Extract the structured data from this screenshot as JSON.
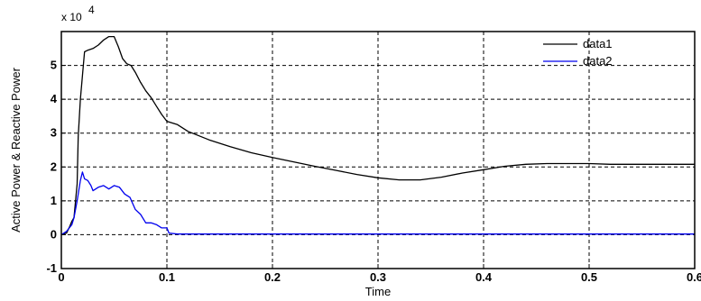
{
  "chart_data": {
    "type": "line",
    "title": "",
    "xlabel": "Time",
    "ylabel": "Active Power & Reactive Power",
    "y_scale_label": "x 10",
    "y_scale_exponent": "4",
    "xlim": [
      0,
      0.6
    ],
    "ylim": [
      -1,
      6
    ],
    "xticks": [
      "0",
      "0.1",
      "0.2",
      "0.3",
      "0.4",
      "0.5",
      "0.6"
    ],
    "yticks": [
      "-1",
      "0",
      "1",
      "2",
      "3",
      "4",
      "5"
    ],
    "grid": true,
    "legend_position": "top-right",
    "series": [
      {
        "name": "data1",
        "color": "#000000",
        "x": [
          0,
          0.005,
          0.008,
          0.01,
          0.012,
          0.015,
          0.016,
          0.018,
          0.02,
          0.022,
          0.025,
          0.03,
          0.035,
          0.04,
          0.045,
          0.05,
          0.054,
          0.058,
          0.062,
          0.066,
          0.07,
          0.075,
          0.08,
          0.085,
          0.09,
          0.095,
          0.1,
          0.11,
          0.12,
          0.14,
          0.16,
          0.18,
          0.2,
          0.22,
          0.24,
          0.26,
          0.28,
          0.3,
          0.32,
          0.34,
          0.36,
          0.38,
          0.4,
          0.42,
          0.44,
          0.46,
          0.48,
          0.5,
          0.52,
          0.54,
          0.56,
          0.58,
          0.6
        ],
        "y": [
          0,
          0.05,
          0.25,
          0.4,
          0.5,
          1.5,
          2.9,
          4.0,
          4.7,
          5.4,
          5.45,
          5.5,
          5.6,
          5.75,
          5.85,
          5.85,
          5.55,
          5.2,
          5.05,
          5.0,
          4.8,
          4.5,
          4.25,
          4.05,
          3.8,
          3.55,
          3.35,
          3.25,
          3.05,
          2.8,
          2.6,
          2.42,
          2.28,
          2.15,
          2.02,
          1.9,
          1.78,
          1.68,
          1.62,
          1.62,
          1.7,
          1.82,
          1.92,
          2.02,
          2.08,
          2.1,
          2.1,
          2.1,
          2.08,
          2.08,
          2.08,
          2.08,
          2.08
        ]
      },
      {
        "name": "data2",
        "color": "#0000ee",
        "x": [
          0,
          0.005,
          0.01,
          0.012,
          0.015,
          0.018,
          0.02,
          0.022,
          0.025,
          0.028,
          0.03,
          0.035,
          0.04,
          0.045,
          0.05,
          0.055,
          0.06,
          0.065,
          0.07,
          0.075,
          0.08,
          0.085,
          0.09,
          0.095,
          0.1,
          0.102,
          0.11,
          0.2,
          0.3,
          0.4,
          0.5,
          0.6
        ],
        "y": [
          0,
          0.1,
          0.3,
          0.5,
          1.0,
          1.6,
          1.85,
          1.65,
          1.6,
          1.45,
          1.3,
          1.4,
          1.45,
          1.35,
          1.45,
          1.4,
          1.2,
          1.1,
          0.75,
          0.6,
          0.35,
          0.35,
          0.3,
          0.2,
          0.2,
          0.05,
          0.02,
          0.02,
          0.02,
          0.02,
          0.02,
          0.02
        ]
      }
    ]
  }
}
